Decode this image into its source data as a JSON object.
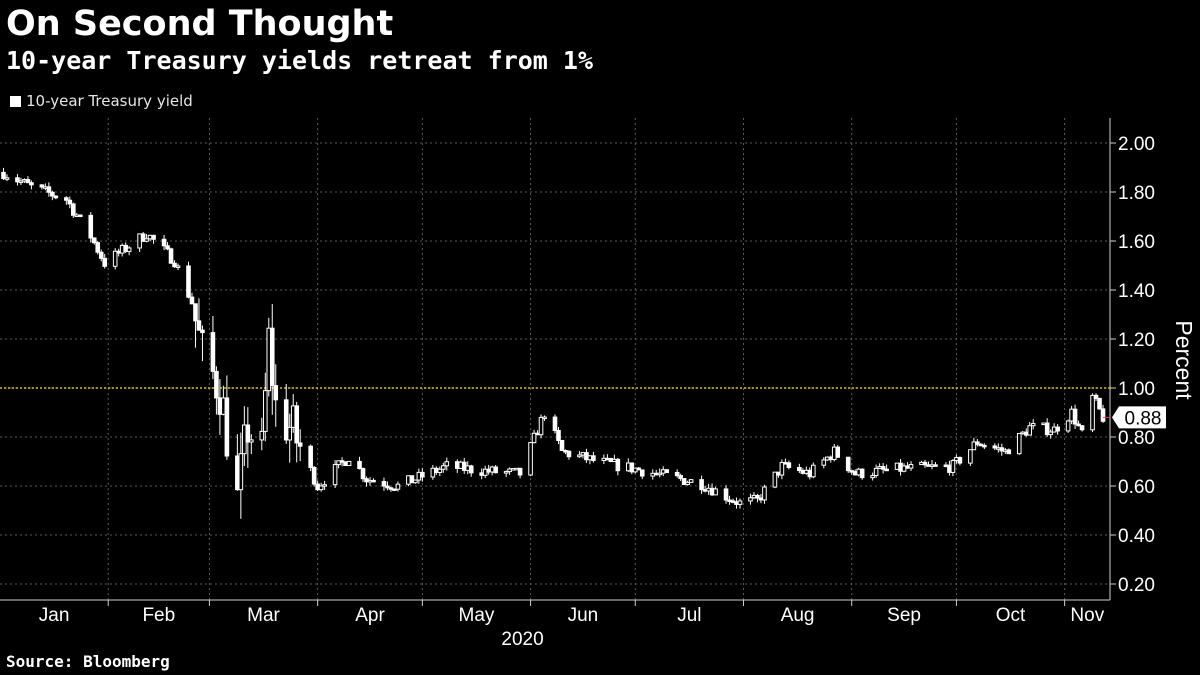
{
  "title": "On Second Thought",
  "subtitle": "10-year Treasury yields retreat from 1%",
  "source": "Source: Bloomberg",
  "colors": {
    "background": "#000000",
    "candle": "#ffffff",
    "grid": "#5a5a5a",
    "reference_line": "#e0c000",
    "last_value_marker": "#e04040"
  },
  "chart_data": {
    "type": "candlestick",
    "series": [
      {
        "name": "10-year Treasury yield"
      }
    ],
    "ylabel": "Percent",
    "ylim": [
      0.15,
      2.1
    ],
    "yticks": [
      "0.20",
      "0.40",
      "0.60",
      "0.80",
      "1.00",
      "1.20",
      "1.40",
      "1.60",
      "1.80",
      "2.00"
    ],
    "xlabels": [
      "Jan",
      "Feb",
      "Mar",
      "Apr",
      "May",
      "Jun",
      "Jul",
      "Aug",
      "Sep",
      "Oct",
      "Nov"
    ],
    "year_label": "2020",
    "reference_line": 1.0,
    "last_value": "0.88",
    "grid": true,
    "close_anchors": [
      [
        "2020-01-02",
        1.88
      ],
      [
        "2020-01-10",
        1.82
      ],
      [
        "2020-01-20",
        1.77
      ],
      [
        "2020-01-27",
        1.62
      ],
      [
        "2020-01-31",
        1.51
      ],
      [
        "2020-02-07",
        1.58
      ],
      [
        "2020-02-12",
        1.63
      ],
      [
        "2020-02-20",
        1.52
      ],
      [
        "2020-02-25",
        1.35
      ],
      [
        "2020-02-28",
        1.13
      ],
      [
        "2020-03-04",
        1.0
      ],
      [
        "2020-03-09",
        0.54
      ],
      [
        "2020-03-12",
        0.84
      ],
      [
        "2020-03-16",
        0.73
      ],
      [
        "2020-03-18",
        1.19
      ],
      [
        "2020-03-20",
        0.92
      ],
      [
        "2020-03-25",
        0.82
      ],
      [
        "2020-04-01",
        0.6
      ],
      [
        "2020-04-10",
        0.72
      ],
      [
        "2020-04-15",
        0.63
      ],
      [
        "2020-04-24",
        0.6
      ],
      [
        "2020-05-08",
        0.68
      ],
      [
        "2020-05-20",
        0.66
      ],
      [
        "2020-05-29",
        0.65
      ],
      [
        "2020-06-05",
        0.9
      ],
      [
        "2020-06-10",
        0.74
      ],
      [
        "2020-06-20",
        0.7
      ],
      [
        "2020-07-01",
        0.67
      ],
      [
        "2020-07-10",
        0.64
      ],
      [
        "2020-07-20",
        0.61
      ],
      [
        "2020-07-31",
        0.53
      ],
      [
        "2020-08-05",
        0.54
      ],
      [
        "2020-08-12",
        0.68
      ],
      [
        "2020-08-20",
        0.65
      ],
      [
        "2020-08-27",
        0.74
      ],
      [
        "2020-09-02",
        0.65
      ],
      [
        "2020-09-15",
        0.67
      ],
      [
        "2020-09-30",
        0.68
      ],
      [
        "2020-10-07",
        0.78
      ],
      [
        "2020-10-15",
        0.74
      ],
      [
        "2020-10-22",
        0.84
      ],
      [
        "2020-10-29",
        0.83
      ],
      [
        "2020-11-03",
        0.9
      ],
      [
        "2020-11-06",
        0.81
      ],
      [
        "2020-11-09",
        0.96
      ],
      [
        "2020-11-12",
        0.88
      ]
    ]
  }
}
